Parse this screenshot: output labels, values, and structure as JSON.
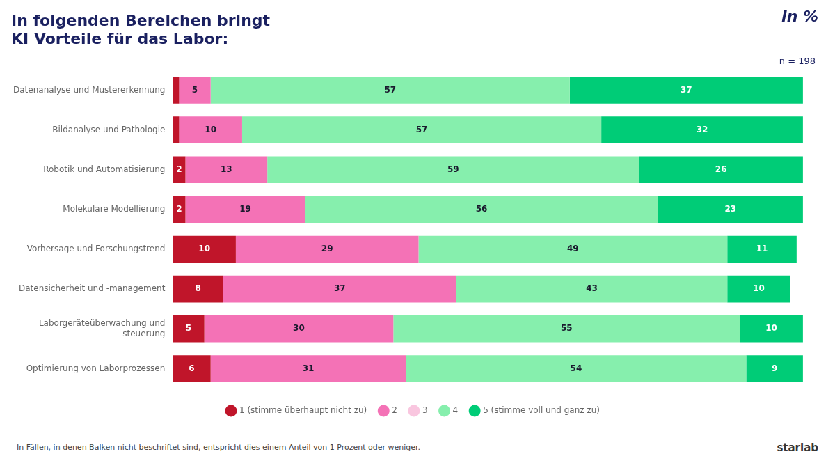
{
  "chart_data": {
    "type": "bar",
    "orientation": "horizontal",
    "stacked": true,
    "title": [
      "In folgenden Bereichen bringt",
      "KI Vorteile für das Labor:"
    ],
    "categories": [
      "Datenanalyse und Mustererkennung",
      "Bildanalyse und Pathologie",
      "Robotik und Automatisierung",
      "Molekulare Modellierung",
      "Vorhersage und Forschungstrend",
      "Datensicherheit und -management",
      "Laborgeräteüberwachung und\n-steuerung",
      "Optimierung von Laborprozessen"
    ],
    "series": [
      {
        "name": "1 (stimme überhaupt nicht zu)",
        "color": "#c0152a",
        "values": [
          1,
          1,
          2,
          2,
          10,
          8,
          5,
          6
        ],
        "value_labels": [
          null,
          null,
          "2",
          "2",
          "10",
          "8",
          "5",
          "6"
        ]
      },
      {
        "name": "2",
        "color": "#f472b6",
        "values": [
          5,
          10,
          13,
          19,
          29,
          37,
          30,
          31
        ]
      },
      {
        "name": "3",
        "color": "#f9c6df",
        "values": [
          null,
          null,
          null,
          null,
          null,
          null,
          null,
          null
        ]
      },
      {
        "name": "4",
        "color": "#86efad",
        "values": [
          57,
          57,
          59,
          56,
          49,
          43,
          55,
          54
        ]
      },
      {
        "name": "5 (stimme voll und ganz zu)",
        "color": "#00cc77",
        "values": [
          37,
          32,
          26,
          23,
          11,
          10,
          10,
          9
        ]
      }
    ],
    "xlim": [
      0,
      102
    ],
    "grid": false,
    "tick_labels": "y",
    "legend": "bottom",
    "data_labels": true,
    "annotations": [
      "n = 198",
      "in %",
      "In Fällen, in denen Balken nicht beschriftet sind, entspricht dies einem Anteil von 1 Prozent oder weniger.",
      "starlab"
    ]
  }
}
